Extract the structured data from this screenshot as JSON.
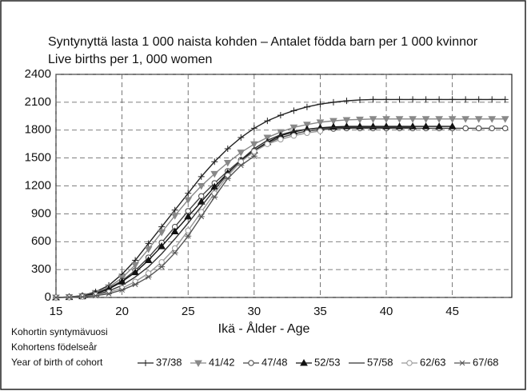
{
  "chart_data": {
    "type": "line",
    "title": "Syntynyttä lasta 1 000 naista kohden – Antalet födda barn per 1 000 kvinnor",
    "subtitle": "Live births per 1, 000 women",
    "xlabel": "Ikä - Ålder - Age",
    "legend_title": [
      "Kohortin syntymävuosi",
      "Kohortens födelseår",
      "Year of birth of cohort"
    ],
    "x": [
      15,
      16,
      17,
      18,
      19,
      20,
      21,
      22,
      23,
      24,
      25,
      26,
      27,
      28,
      29,
      30,
      31,
      32,
      33,
      34,
      35,
      36,
      37,
      38,
      39,
      40,
      41,
      42,
      43,
      44,
      45,
      46,
      47,
      48,
      49
    ],
    "xlim": [
      15,
      49.5
    ],
    "xticks": [
      15,
      20,
      25,
      30,
      35,
      40,
      45
    ],
    "ylim": [
      0,
      2400
    ],
    "yticks": [
      0,
      300,
      600,
      900,
      1200,
      1500,
      1800,
      2100,
      2400
    ],
    "grid": true,
    "series": [
      {
        "name": "37/38",
        "color": "#222222",
        "marker": "plus",
        "values": [
          0,
          5,
          20,
          60,
          130,
          250,
          400,
          580,
          760,
          940,
          1120,
          1300,
          1460,
          1600,
          1720,
          1820,
          1900,
          1960,
          2010,
          2050,
          2080,
          2100,
          2115,
          2125,
          2130,
          2130,
          2130,
          2130,
          2130,
          2130,
          2130,
          2130,
          2130,
          2130,
          2130
        ]
      },
      {
        "name": "41/42",
        "color": "#888888",
        "marker": "tridown",
        "values": [
          0,
          5,
          15,
          50,
          110,
          210,
          350,
          520,
          700,
          880,
          1050,
          1200,
          1330,
          1450,
          1560,
          1650,
          1720,
          1780,
          1830,
          1860,
          1885,
          1900,
          1910,
          1915,
          1920,
          1920,
          1920,
          1920,
          1920,
          1920,
          1920,
          1920,
          1920,
          1920,
          1920
        ]
      },
      {
        "name": "47/48",
        "color": "#444444",
        "marker": "circle",
        "values": [
          0,
          5,
          15,
          45,
          100,
          180,
          290,
          430,
          590,
          760,
          930,
          1090,
          1230,
          1360,
          1480,
          1580,
          1660,
          1720,
          1760,
          1790,
          1805,
          1815,
          1820,
          1820,
          1820,
          1820,
          1820,
          1820,
          1820,
          1820,
          1820,
          1820,
          1820,
          1820,
          1820
        ]
      },
      {
        "name": "52/53",
        "color": "#111111",
        "marker": "triangle",
        "values": [
          0,
          3,
          12,
          40,
          90,
          170,
          270,
          400,
          550,
          710,
          870,
          1030,
          1190,
          1340,
          1470,
          1580,
          1670,
          1740,
          1780,
          1810,
          1825,
          1835,
          1840,
          1840,
          1840,
          1840,
          1840,
          1840,
          1840,
          1840,
          1840,
          null,
          null,
          null,
          null
        ]
      },
      {
        "name": "57/58",
        "color": "#333333",
        "marker": "none",
        "values": [
          0,
          3,
          10,
          30,
          70,
          130,
          220,
          330,
          470,
          630,
          800,
          980,
          1160,
          1330,
          1480,
          1600,
          1690,
          1750,
          1790,
          1810,
          1820,
          1825,
          1830,
          1830,
          1830,
          1830,
          1830,
          1830,
          null,
          null,
          null,
          null,
          null,
          null,
          null
        ]
      },
      {
        "name": "62/63",
        "color": "#999999",
        "marker": "circle",
        "values": [
          0,
          2,
          8,
          25,
          55,
          100,
          170,
          260,
          380,
          530,
          720,
          920,
          1120,
          1310,
          1460,
          1570,
          1650,
          1700,
          1740,
          1770,
          1790,
          null,
          null,
          null,
          null,
          null,
          null,
          null,
          null,
          null,
          null,
          null,
          null,
          null,
          null
        ]
      },
      {
        "name": "67/68",
        "color": "#555555",
        "marker": "star",
        "values": [
          0,
          2,
          6,
          18,
          40,
          80,
          140,
          220,
          330,
          480,
          660,
          870,
          1080,
          1280,
          1420,
          1520,
          null,
          null,
          null,
          null,
          null,
          null,
          null,
          null,
          null,
          null,
          null,
          null,
          null,
          null,
          null,
          null,
          null,
          null,
          null
        ]
      }
    ]
  }
}
